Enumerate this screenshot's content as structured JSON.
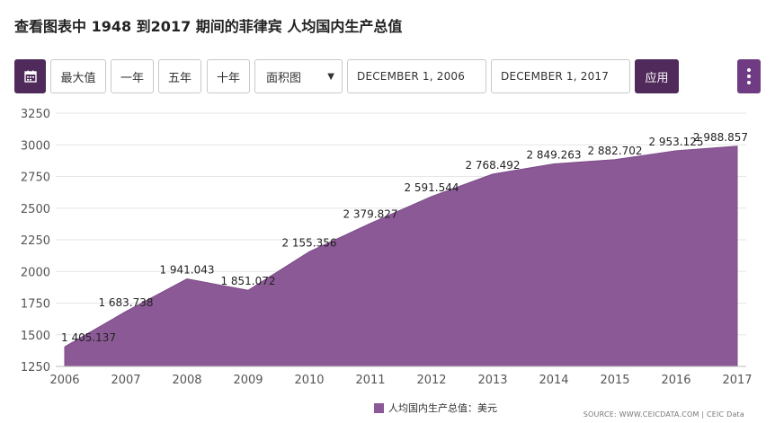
{
  "title": "查看图表中 1948 到2017 期间的菲律宾 人均国内生产总值",
  "toolbar": {
    "calendar_icon": "calendar-icon",
    "max_label": "最大值",
    "one_year_label": "一年",
    "five_year_label": "五年",
    "ten_year_label": "十年",
    "chart_type_value": "面积图",
    "start_date": "DECEMBER 1, 2006",
    "end_date": "DECEMBER 1, 2017",
    "apply_label": "应用",
    "menu_icon": "more-vertical-icon"
  },
  "chart_data": {
    "type": "area",
    "x": [
      "2006",
      "2007",
      "2008",
      "2009",
      "2010",
      "2011",
      "2012",
      "2013",
      "2014",
      "2015",
      "2016",
      "2017"
    ],
    "series": [
      {
        "name": "人均国内生产总值：美元",
        "values": [
          1405.137,
          1683.738,
          1941.043,
          1851.072,
          2155.356,
          2379.827,
          2591.544,
          2768.492,
          2849.263,
          2882.702,
          2953.125,
          2988.857
        ],
        "labels": [
          "1 405.137",
          "1 683.738",
          "1 941.043",
          "1 851.072",
          "2 155.356",
          "2 379.827",
          "2 591.544",
          "2 768.492",
          "2 849.263",
          "2 882.702",
          "2 953.125",
          "2 988.857"
        ]
      }
    ],
    "ylim": [
      1250,
      3250
    ],
    "yticks": [
      1250,
      1500,
      1750,
      2000,
      2250,
      2500,
      2750,
      3000,
      3250
    ],
    "grid": true,
    "color": "#8b5a96",
    "legend_position": "bottom-center"
  },
  "legend": {
    "label": "人均国内生产总值：美元"
  },
  "source": "SOURCE: WWW.CEICDATA.COM | CEIC Data"
}
